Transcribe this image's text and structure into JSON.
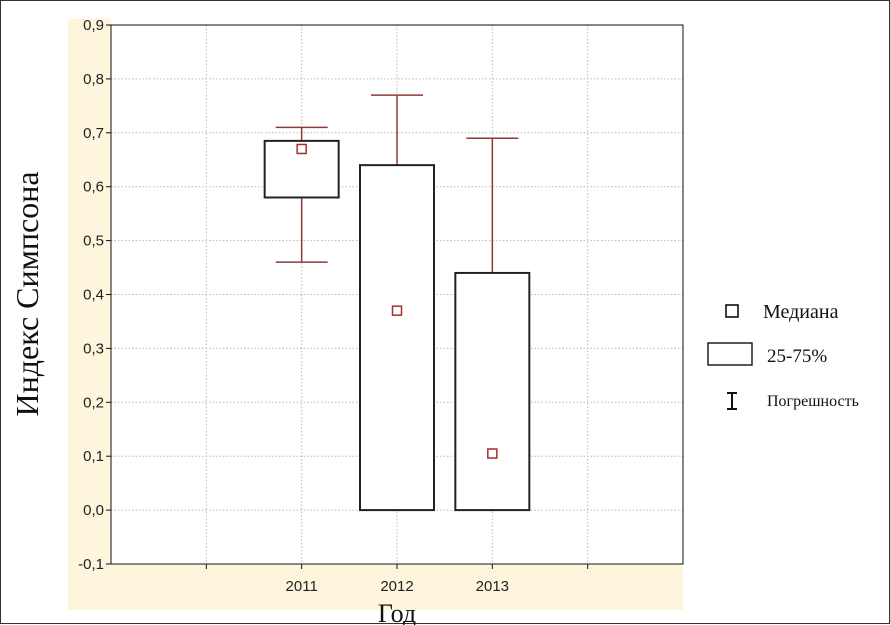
{
  "chart_data": {
    "type": "box",
    "xlabel": "Год",
    "ylabel": "Индекс Симпсона",
    "ylim": [
      -0.1,
      0.9
    ],
    "yticks": [
      "-0,1",
      "0,0",
      "0,1",
      "0,2",
      "0,3",
      "0,4",
      "0,5",
      "0,6",
      "0,7",
      "0,8",
      "0,9"
    ],
    "ytick_values": [
      -0.1,
      0.0,
      0.1,
      0.2,
      0.3,
      0.4,
      0.5,
      0.6,
      0.7,
      0.8,
      0.9
    ],
    "x_slots": 6,
    "categories": [
      "2011",
      "2012",
      "2013"
    ],
    "category_slots": [
      2,
      3,
      4
    ],
    "boxes": [
      {
        "category": "2011",
        "median": 0.67,
        "q1": 0.58,
        "q3": 0.685,
        "min": 0.46,
        "max": 0.71
      },
      {
        "category": "2012",
        "median": 0.37,
        "q1": 0.0,
        "q3": 0.64,
        "min": 0.0,
        "max": 0.77
      },
      {
        "category": "2013",
        "median": 0.105,
        "q1": 0.0,
        "q3": 0.44,
        "min": 0.0,
        "max": 0.69
      }
    ],
    "legend": {
      "median_label": "Медиана",
      "box_label": "25-75%",
      "whisker_label": "Погрешность"
    },
    "grid": true,
    "legend_position": "right",
    "colors": {
      "whisker": "#8b3a3a",
      "median_marker": "#a03030",
      "box_stroke": "#222222",
      "axis_band": "#fdf6dc",
      "grid": "#b8b8b8"
    }
  }
}
